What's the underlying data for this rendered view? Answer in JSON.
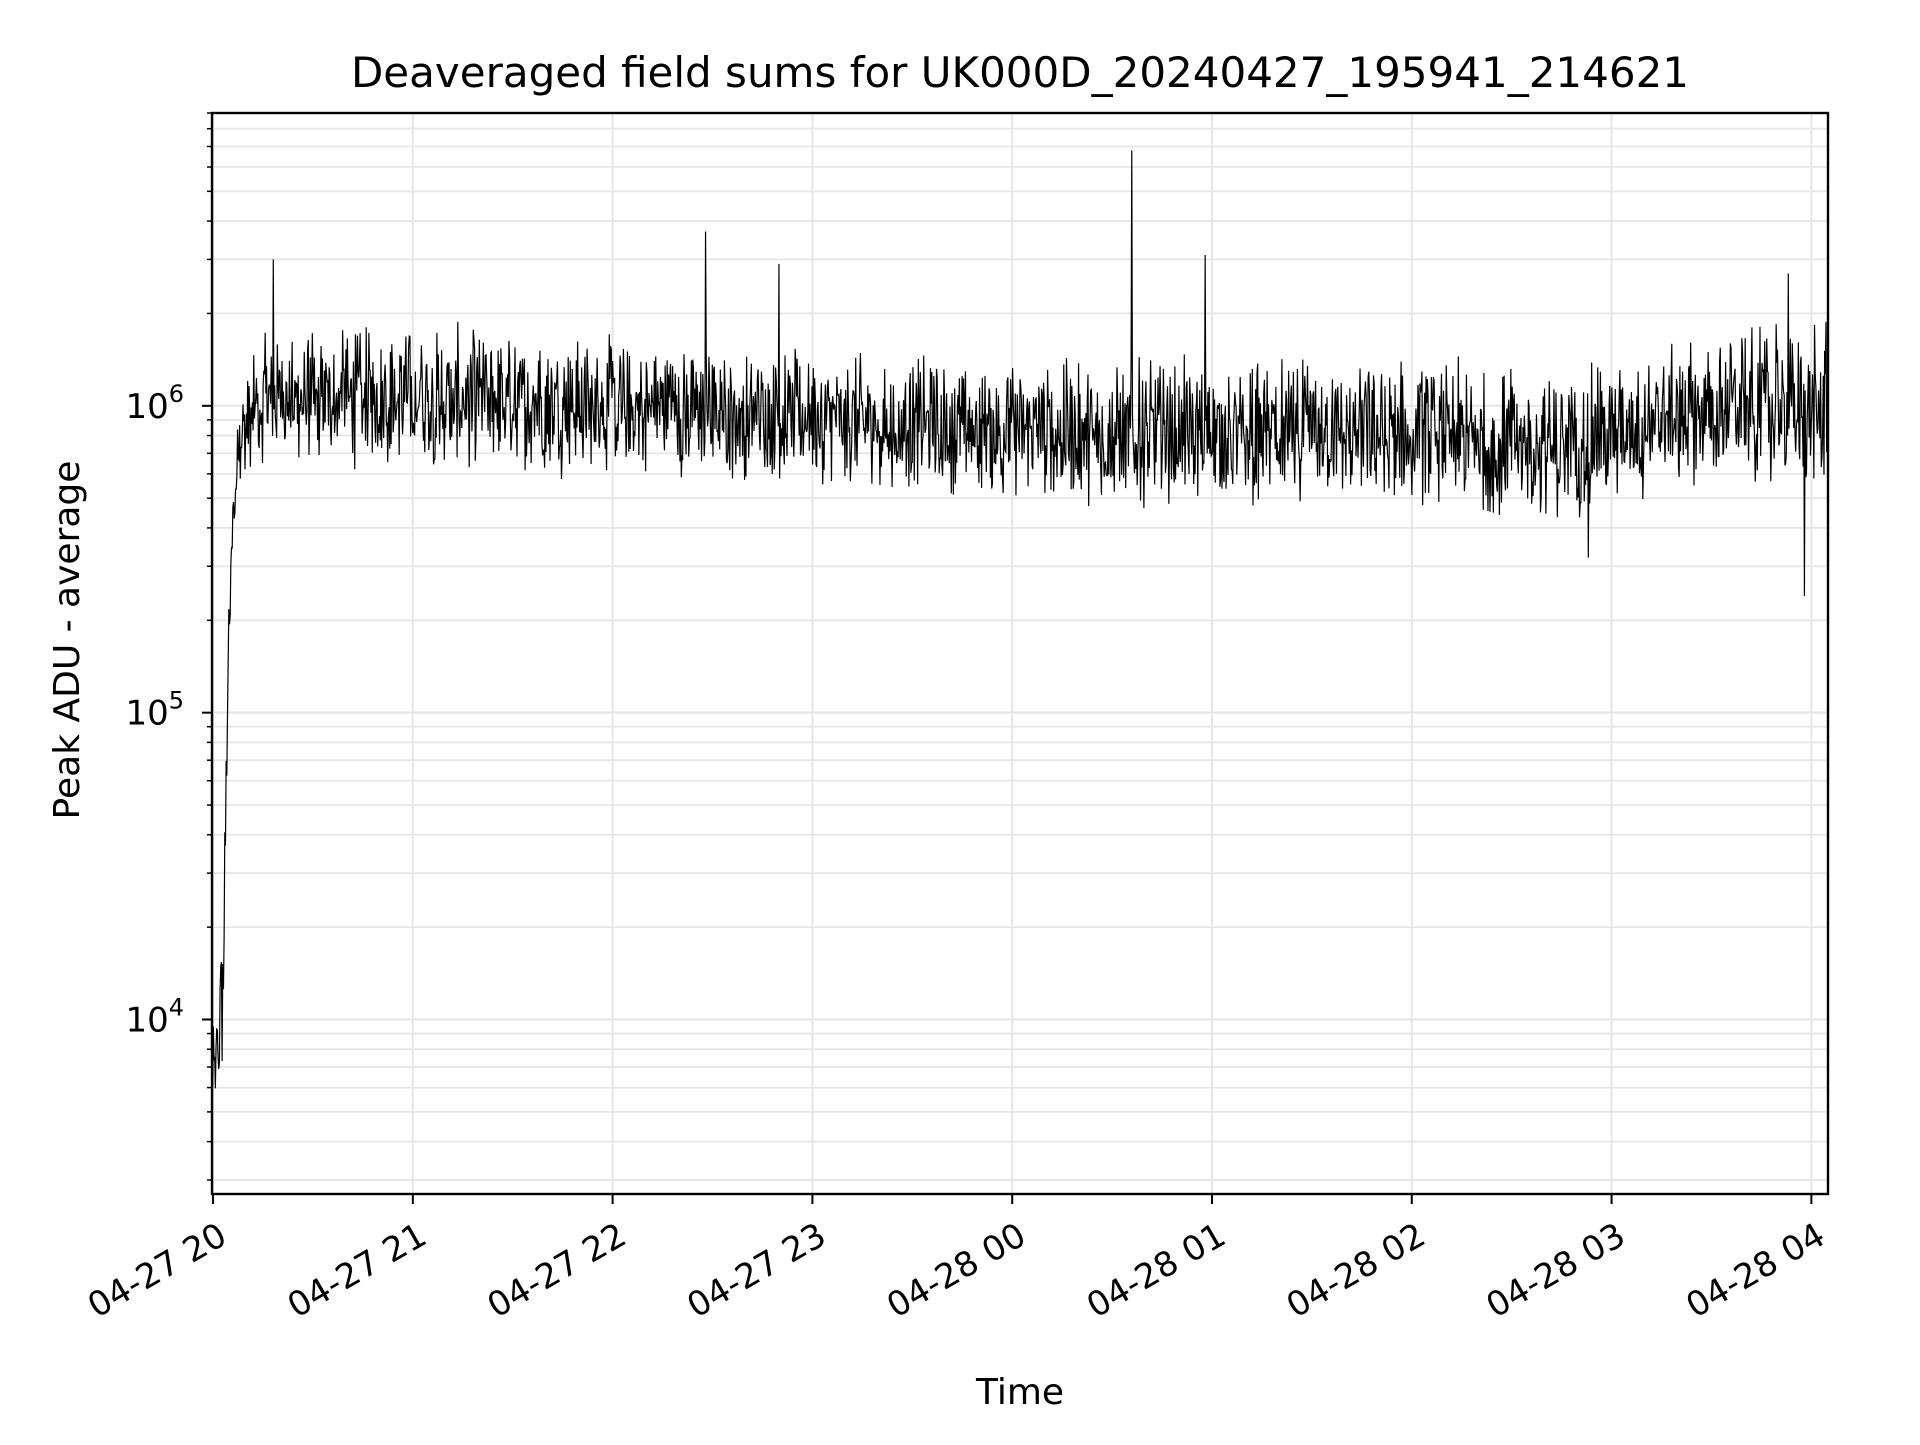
{
  "chart_data": {
    "type": "line",
    "title": "Deaveraged field sums for UK000D_20240427_195941_214621",
    "xlabel": "Time",
    "ylabel": "Peak ADU - average",
    "yscale": "log",
    "xlim": [
      "2024-04-27T19:59:41",
      "2024-04-28T04:05:00"
    ],
    "ylim": [
      2700,
      9000000
    ],
    "x_ticks": [
      "04-27 20",
      "04-27 21",
      "04-27 22",
      "04-27 23",
      "04-28 00",
      "04-28 01",
      "04-28 02",
      "04-28 03",
      "04-28 04"
    ],
    "y_ticks": [
      {
        "base": "10",
        "exp": "4",
        "value": 10000
      },
      {
        "base": "10",
        "exp": "5",
        "value": 100000
      },
      {
        "base": "10",
        "exp": "6",
        "value": 1000000
      }
    ],
    "grid": true,
    "line_color": "#000000",
    "grid_color": "#e6e6e6",
    "profile": [
      {
        "t": "2024-04-27T19:59:41",
        "low": 4500,
        "high": 9000
      },
      {
        "t": "2024-04-27T20:01:00",
        "low": 4500,
        "high": 12000
      },
      {
        "t": "2024-04-27T20:03:00",
        "low": 5000,
        "high": 30000
      },
      {
        "t": "2024-04-27T20:04:30",
        "low": 100000,
        "high": 200000
      },
      {
        "t": "2024-04-27T20:06:00",
        "low": 350000,
        "high": 550000
      },
      {
        "t": "2024-04-27T20:08:00",
        "low": 550000,
        "high": 1200000
      },
      {
        "t": "2024-04-27T20:15:00",
        "low": 600000,
        "high": 1800000
      },
      {
        "t": "2024-04-27T21:00:00",
        "low": 580000,
        "high": 2000000
      },
      {
        "t": "2024-04-27T22:00:00",
        "low": 560000,
        "high": 1800000
      },
      {
        "t": "2024-04-27T23:00:00",
        "low": 520000,
        "high": 1600000
      },
      {
        "t": "2024-04-28T00:00:00",
        "low": 460000,
        "high": 1500000
      },
      {
        "t": "2024-04-28T01:00:00",
        "low": 440000,
        "high": 1500000
      },
      {
        "t": "2024-04-28T02:00:00",
        "low": 450000,
        "high": 1500000
      },
      {
        "t": "2024-04-28T02:45:00",
        "low": 380000,
        "high": 1400000
      },
      {
        "t": "2024-04-28T03:00:00",
        "low": 440000,
        "high": 1500000
      },
      {
        "t": "2024-04-28T03:40:00",
        "low": 550000,
        "high": 1900000
      },
      {
        "t": "2024-04-28T04:05:00",
        "low": 450000,
        "high": 2000000
      }
    ],
    "spikes": [
      {
        "t": "2024-04-27T20:18:00",
        "value": 3000000
      },
      {
        "t": "2024-04-27T22:28:00",
        "value": 3700000
      },
      {
        "t": "2024-04-27T22:50:00",
        "value": 2900000
      },
      {
        "t": "2024-04-28T00:36:00",
        "value": 6800000
      },
      {
        "t": "2024-04-28T00:58:00",
        "value": 3100000
      },
      {
        "t": "2024-04-28T03:53:00",
        "value": 2700000
      },
      {
        "t": "2024-04-28T03:58:00",
        "value": 240000
      },
      {
        "t": "2024-04-28T02:53:00",
        "value": 320000
      }
    ]
  }
}
